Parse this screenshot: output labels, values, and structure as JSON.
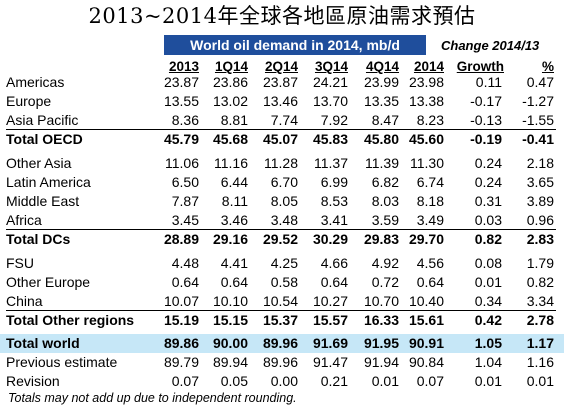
{
  "title": "2013~2014年全球各地區原油需求預估",
  "banner": "World oil demand in 2014, mb/d",
  "change_label": "Change 2014/13",
  "headers": [
    "2013",
    "1Q14",
    "2Q14",
    "3Q14",
    "4Q14",
    "2014",
    "Growth",
    "%"
  ],
  "rows": [
    {
      "label": "Americas",
      "values": [
        "23.87",
        "23.86",
        "23.87",
        "24.21",
        "23.99",
        "23.98",
        "0.11",
        "0.47"
      ]
    },
    {
      "label": "Europe",
      "values": [
        "13.55",
        "13.02",
        "13.46",
        "13.70",
        "13.35",
        "13.38",
        "-0.17",
        "-1.27"
      ]
    },
    {
      "label": "Asia Pacific",
      "values": [
        "8.36",
        "8.81",
        "7.74",
        "7.92",
        "8.47",
        "8.23",
        "-0.13",
        "-1.55"
      ]
    },
    {
      "label": "Total OECD",
      "values": [
        "45.79",
        "45.68",
        "45.07",
        "45.83",
        "45.80",
        "45.60",
        "-0.19",
        "-0.41"
      ]
    },
    {
      "label": "Other Asia",
      "values": [
        "11.06",
        "11.16",
        "11.28",
        "11.37",
        "11.39",
        "11.30",
        "0.24",
        "2.18"
      ]
    },
    {
      "label": "Latin America",
      "values": [
        "6.50",
        "6.44",
        "6.70",
        "6.99",
        "6.82",
        "6.74",
        "0.24",
        "3.65"
      ]
    },
    {
      "label": "Middle East",
      "values": [
        "7.87",
        "8.11",
        "8.05",
        "8.53",
        "8.03",
        "8.18",
        "0.31",
        "3.89"
      ]
    },
    {
      "label": "Africa",
      "values": [
        "3.45",
        "3.46",
        "3.48",
        "3.41",
        "3.59",
        "3.49",
        "0.03",
        "0.96"
      ]
    },
    {
      "label": "Total DCs",
      "values": [
        "28.89",
        "29.16",
        "29.52",
        "30.29",
        "29.83",
        "29.70",
        "0.82",
        "2.83"
      ]
    },
    {
      "label": "FSU",
      "values": [
        "4.48",
        "4.41",
        "4.25",
        "4.66",
        "4.92",
        "4.56",
        "0.08",
        "1.79"
      ]
    },
    {
      "label": "Other Europe",
      "values": [
        "0.64",
        "0.64",
        "0.58",
        "0.64",
        "0.72",
        "0.64",
        "0.01",
        "0.82"
      ]
    },
    {
      "label": "China",
      "values": [
        "10.07",
        "10.10",
        "10.54",
        "10.27",
        "10.70",
        "10.40",
        "0.34",
        "3.34"
      ]
    },
    {
      "label": "Total Other regions",
      "values": [
        "15.19",
        "15.15",
        "15.37",
        "15.57",
        "16.33",
        "15.61",
        "0.42",
        "2.78"
      ]
    },
    {
      "label": "Total world",
      "values": [
        "89.86",
        "90.00",
        "89.96",
        "91.69",
        "91.95",
        "90.91",
        "1.05",
        "1.17"
      ]
    },
    {
      "label": "Previous estimate",
      "values": [
        "89.79",
        "89.94",
        "89.96",
        "91.47",
        "91.94",
        "90.84",
        "1.04",
        "1.16"
      ]
    },
    {
      "label": "Revision",
      "values": [
        "0.07",
        "0.05",
        "0.00",
        "0.21",
        "0.01",
        "0.07",
        "0.01",
        "0.01"
      ]
    }
  ],
  "footnote": "Totals may not add up due to independent rounding.",
  "colors": {
    "banner_bg": "#1f4e9c",
    "banner_text": "#ffffff",
    "highlight_row": "#c6e7f7"
  }
}
